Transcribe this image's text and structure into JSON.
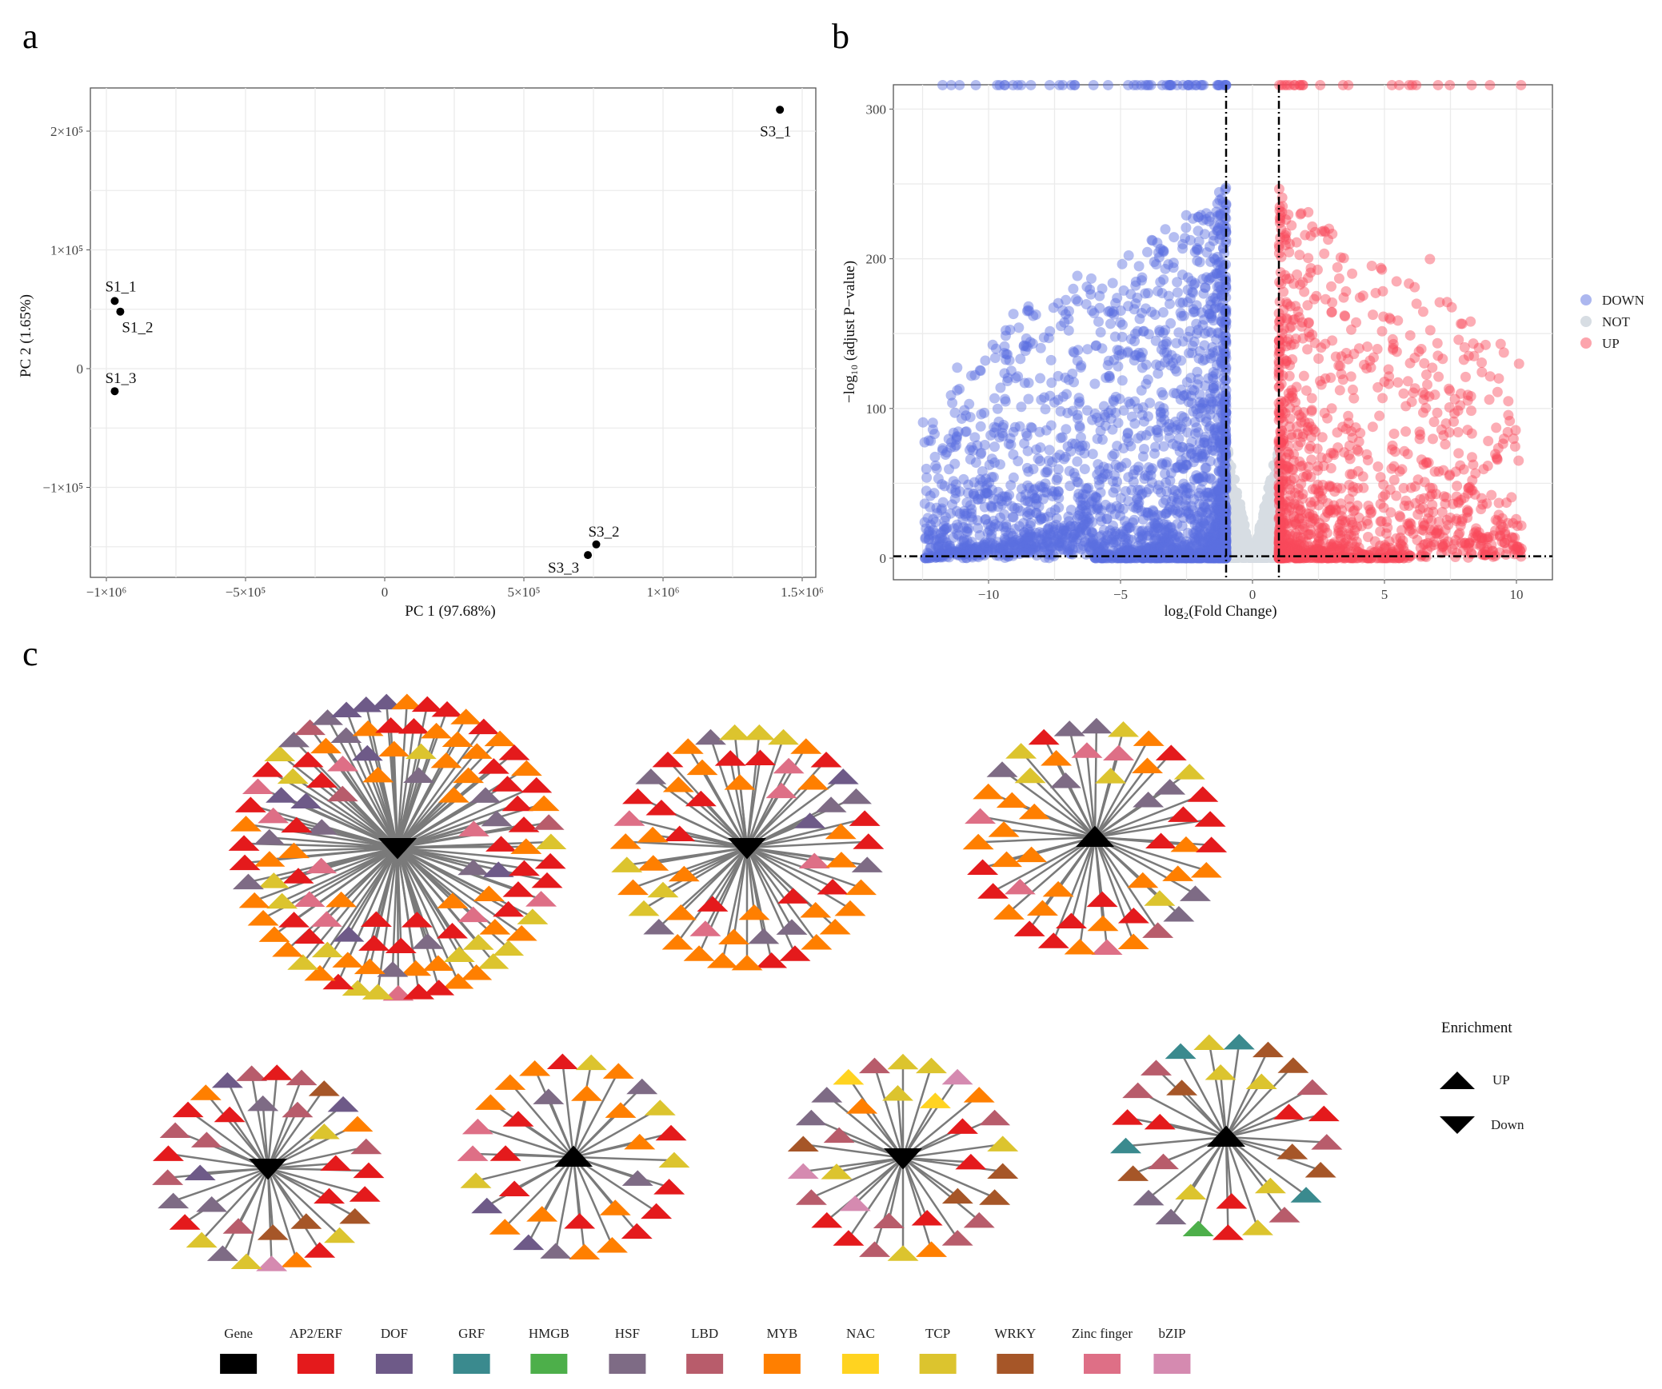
{
  "panel_labels": {
    "a": "a",
    "b": "b",
    "c": "c"
  },
  "chart_data": [
    {
      "type": "scatter",
      "panel": "a",
      "xlabel": "PC 1 (97.68%)",
      "ylabel": "PC 2 (1.65%)",
      "xlim": [
        -1100000,
        1550000
      ],
      "ylim": [
        -190000,
        240000
      ],
      "xticks": [
        -1000000,
        -500000,
        0,
        500000,
        1000000,
        1500000
      ],
      "xtick_labels": [
        "−1×10⁶",
        "−5×10⁵",
        "0",
        "5×10⁵",
        "1×10⁶",
        "1.5×10⁶"
      ],
      "yticks": [
        -100000,
        0,
        100000,
        200000
      ],
      "ytick_labels": [
        "−1×10⁵",
        "0",
        "1×10⁵",
        "2×10⁵"
      ],
      "grid": true,
      "points": [
        {
          "label": "S3_1",
          "x": 1420000,
          "y": 218000
        },
        {
          "label": "S1_1",
          "x": -970000,
          "y": 57000
        },
        {
          "label": "S1_2",
          "x": -950000,
          "y": 48000
        },
        {
          "label": "S1_3",
          "x": -970000,
          "y": -19000
        },
        {
          "label": "S3_2",
          "x": 760000,
          "y": -148000
        },
        {
          "label": "S3_3",
          "x": 730000,
          "y": -157000
        }
      ]
    },
    {
      "type": "scatter",
      "panel": "b",
      "xlabel": "log₂(Fold Change)",
      "ylabel": "−log₁₀ (adjust P−value)",
      "xlim": [
        -13.5,
        11.5
      ],
      "ylim": [
        -15,
        317
      ],
      "xticks": [
        -10,
        -5,
        0,
        5,
        10
      ],
      "xtick_labels": [
        "−10",
        "−5",
        "0",
        "5",
        "10"
      ],
      "yticks": [
        0,
        100,
        200,
        300
      ],
      "ytick_labels": [
        "0",
        "100",
        "200",
        "300"
      ],
      "thresholds": {
        "log2fc": [
          -1,
          1
        ],
        "neg_log10_p": 1.3
      },
      "grid": true,
      "legend": {
        "position": "right",
        "entries": [
          {
            "label": "DOWN",
            "color": "#5a6fe0"
          },
          {
            "label": "NOT",
            "color": "#d7dde3"
          },
          {
            "label": "UP",
            "color": "#f94a5a"
          }
        ]
      },
      "groups": [
        {
          "name": "DOWN",
          "x_range": [
            -12.5,
            -1
          ],
          "y_max": 316
        },
        {
          "name": "NOT",
          "x_range": [
            -1,
            1
          ],
          "y_max": 80
        },
        {
          "name": "UP",
          "x_range": [
            1,
            10.2
          ],
          "y_max": 316
        }
      ]
    }
  ],
  "network": {
    "families": [
      {
        "name": "Gene",
        "color": "#000000"
      },
      {
        "name": "AP2/ERF",
        "color": "#e41a1c"
      },
      {
        "name": "DOF",
        "color": "#6e5a88"
      },
      {
        "name": "GRF",
        "color": "#3a8a8e"
      },
      {
        "name": "HMGB",
        "color": "#4daf4a"
      },
      {
        "name": "HSF",
        "color": "#7e6b85"
      },
      {
        "name": "LBD",
        "color": "#b85c6b"
      },
      {
        "name": "MYB",
        "color": "#ff7f00"
      },
      {
        "name": "NAC",
        "color": "#ffd320"
      },
      {
        "name": "TCP",
        "color": "#dcc42e"
      },
      {
        "name": "WRKY",
        "color": "#a65628"
      },
      {
        "name": "Zinc finger",
        "color": "#de6f86"
      },
      {
        "name": "bZIP",
        "color": "#d58ab0"
      }
    ],
    "enrichment": {
      "title": "Enrichment",
      "up": "UP",
      "down": "Down"
    },
    "modules": [
      {
        "hub": "down",
        "nodes": {
          "AP2/ERF": 35,
          "MYB": 35,
          "TCP": 15,
          "HSF": 12,
          "DOF": 8,
          "Zinc finger": 10,
          "LBD": 3
        }
      },
      {
        "hub": "down",
        "nodes": {
          "AP2/ERF": 15,
          "MYB": 25,
          "TCP": 6,
          "HSF": 8,
          "Zinc finger": 5,
          "DOF": 2
        }
      },
      {
        "hub": "up",
        "nodes": {
          "AP2/ERF": 14,
          "MYB": 20,
          "TCP": 6,
          "HSF": 8,
          "Zinc finger": 5,
          "LBD": 1
        }
      },
      {
        "hub": "down",
        "nodes": {
          "AP2/ERF": 10,
          "MYB": 3,
          "LBD": 8,
          "HSF": 4,
          "TCP": 4,
          "WRKY": 4,
          "DOF": 3,
          "bZIP": 1
        }
      },
      {
        "hub": "up",
        "nodes": {
          "AP2/ERF": 9,
          "MYB": 12,
          "TCP": 4,
          "HSF": 4,
          "DOF": 2,
          "Zinc finger": 2
        }
      },
      {
        "hub": "down",
        "nodes": {
          "LBD": 8,
          "TCP": 6,
          "AP2/ERF": 5,
          "WRKY": 4,
          "MYB": 3,
          "HSF": 2,
          "bZIP": 3,
          "NAC": 2
        }
      },
      {
        "hub": "up",
        "nodes": {
          "LBD": 6,
          "WRKY": 6,
          "AP2/ERF": 6,
          "TCP": 6,
          "GRF": 4,
          "HSF": 2,
          "HMGB": 1
        }
      }
    ]
  }
}
